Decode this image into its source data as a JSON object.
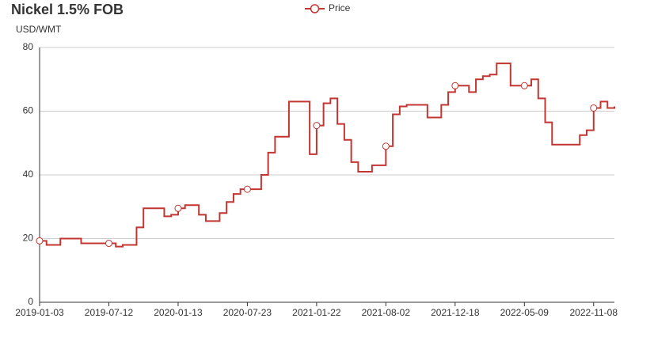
{
  "chart_data": {
    "type": "step-line",
    "title": "Nickel 1.5% FOB",
    "y_label": "USD/WMT",
    "categories": [
      "2019-01-03",
      null,
      null,
      null,
      null,
      null,
      null,
      null,
      null,
      null,
      "2019-07-12",
      null,
      null,
      null,
      null,
      null,
      null,
      null,
      null,
      null,
      "2020-01-13",
      null,
      null,
      null,
      null,
      null,
      null,
      null,
      null,
      null,
      "2020-07-23",
      null,
      null,
      null,
      null,
      null,
      null,
      null,
      null,
      null,
      "2021-01-22",
      null,
      null,
      null,
      null,
      null,
      null,
      null,
      null,
      null,
      "2021-08-02",
      null,
      null,
      null,
      null,
      null,
      null,
      null,
      null,
      null,
      "2021-12-18",
      null,
      null,
      null,
      null,
      null,
      null,
      null,
      null,
      null,
      "2022-05-09",
      null,
      null,
      null,
      null,
      null,
      null,
      null,
      null,
      null,
      "2022-11-08",
      null,
      null,
      null
    ],
    "series": [
      {
        "name": "Price",
        "color": "#c23531",
        "values": [
          19.3,
          18,
          18,
          20,
          20,
          20,
          18.5,
          18.5,
          18.5,
          18.5,
          18.5,
          17.5,
          18,
          18,
          23.5,
          29.5,
          29.5,
          29.5,
          27,
          27.5,
          29.5,
          30.5,
          30.5,
          27.5,
          25.5,
          25.5,
          28,
          31.5,
          34,
          35.5,
          35.5,
          35.5,
          40,
          47,
          52,
          52,
          63,
          63,
          63,
          46.5,
          55.5,
          62.5,
          64,
          56,
          51,
          44,
          41,
          41,
          43,
          43,
          49,
          59,
          61.5,
          62,
          62,
          62,
          58,
          58,
          62,
          66,
          68,
          68,
          66,
          70,
          71,
          71.5,
          75,
          75,
          68,
          68,
          68,
          70,
          64,
          56.5,
          49.5,
          49.5,
          49.5,
          49.5,
          52.5,
          54,
          61,
          63,
          61,
          61.5
        ]
      }
    ],
    "ylim": [
      0,
      80
    ],
    "yticks": [
      0,
      20,
      40,
      60,
      80
    ],
    "grid": true,
    "legend": "top"
  }
}
